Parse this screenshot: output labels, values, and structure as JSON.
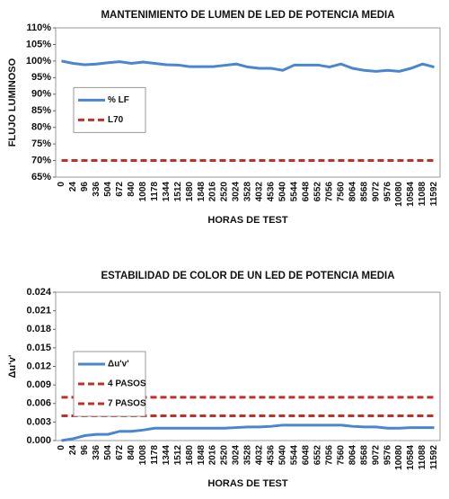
{
  "chart_data": [
    {
      "type": "line",
      "title": "MANTENIMIENTO DE LUMEN DE LED DE POTENCIA MEDIA",
      "y_label": "FLUJO LUMINOSO",
      "x_label": "HORAS DE TEST",
      "categories": [
        "0",
        "24",
        "96",
        "336",
        "504",
        "672",
        "840",
        "1008",
        "1178",
        "1344",
        "1512",
        "1680",
        "1848",
        "2016",
        "2520",
        "3024",
        "3528",
        "4032",
        "4536",
        "5040",
        "5544",
        "6048",
        "6552",
        "7056",
        "7560",
        "8064",
        "8568",
        "9072",
        "9576",
        "10080",
        "10584",
        "11088",
        "11592"
      ],
      "series": [
        {
          "name": "% LF",
          "color": "#4a86d0",
          "dash": false,
          "values": [
            100,
            99.3,
            98.9,
            99.1,
            99.5,
            99.8,
            99.3,
            99.7,
            99.3,
            98.9,
            98.8,
            98.3,
            98.3,
            98.3,
            98.7,
            99.1,
            98.2,
            97.8,
            97.8,
            97.2,
            98.8,
            98.8,
            98.8,
            98.2,
            99.1,
            97.8,
            97.2,
            96.9,
            97.2,
            96.9,
            97.8,
            99.1,
            98.2
          ]
        },
        {
          "name": "L70",
          "color": "#c0302a",
          "dash": true,
          "values": [
            70,
            70,
            70,
            70,
            70,
            70,
            70,
            70,
            70,
            70,
            70,
            70,
            70,
            70,
            70,
            70,
            70,
            70,
            70,
            70,
            70,
            70,
            70,
            70,
            70,
            70,
            70,
            70,
            70,
            70,
            70,
            70,
            70
          ]
        }
      ],
      "ylim": [
        65,
        110
      ],
      "yticks": [
        {
          "value": 65,
          "label": "65%"
        },
        {
          "value": 70,
          "label": "70%"
        },
        {
          "value": 75,
          "label": "75%"
        },
        {
          "value": 80,
          "label": "80%"
        },
        {
          "value": 85,
          "label": "85%"
        },
        {
          "value": 90,
          "label": "90%"
        },
        {
          "value": 95,
          "label": "95%"
        },
        {
          "value": 100,
          "label": "100%"
        },
        {
          "value": 105,
          "label": "105%"
        },
        {
          "value": 110,
          "label": "110%"
        }
      ],
      "legend": "left"
    },
    {
      "type": "line",
      "title": "ESTABILIDAD DE COLOR DE UN LED DE POTENCIA MEDIA",
      "y_label": "Δu'v'",
      "x_label": "HORAS DE TEST",
      "categories": [
        "0",
        "24",
        "96",
        "336",
        "504",
        "672",
        "840",
        "1008",
        "1178",
        "1344",
        "1512",
        "1680",
        "1848",
        "2016",
        "2520",
        "3024",
        "3528",
        "4032",
        "4536",
        "5040",
        "5544",
        "6048",
        "6552",
        "7056",
        "7560",
        "8064",
        "8568",
        "9072",
        "9576",
        "10080",
        "10584",
        "11088",
        "11592"
      ],
      "series": [
        {
          "name": "Δu'v'",
          "color": "#4a86d0",
          "dash": false,
          "values": [
            0,
            0.0003,
            0.0008,
            0.001,
            0.001,
            0.0015,
            0.0015,
            0.0017,
            0.002,
            0.002,
            0.002,
            0.002,
            0.002,
            0.002,
            0.002,
            0.0021,
            0.0022,
            0.0022,
            0.0023,
            0.0025,
            0.0025,
            0.0025,
            0.0025,
            0.0025,
            0.0025,
            0.0023,
            0.0022,
            0.0022,
            0.002,
            0.002,
            0.0021,
            0.0021,
            0.0021
          ]
        },
        {
          "name": "4 PASOS",
          "color": "#c0302a",
          "dash": true,
          "values": [
            0.004,
            0.004,
            0.004,
            0.004,
            0.004,
            0.004,
            0.004,
            0.004,
            0.004,
            0.004,
            0.004,
            0.004,
            0.004,
            0.004,
            0.004,
            0.004,
            0.004,
            0.004,
            0.004,
            0.004,
            0.004,
            0.004,
            0.004,
            0.004,
            0.004,
            0.004,
            0.004,
            0.004,
            0.004,
            0.004,
            0.004,
            0.004,
            0.004
          ]
        },
        {
          "name": "7 PASOS",
          "color": "#c0302a",
          "dash": true,
          "values": [
            0.007,
            0.007,
            0.007,
            0.007,
            0.007,
            0.007,
            0.007,
            0.007,
            0.007,
            0.007,
            0.007,
            0.007,
            0.007,
            0.007,
            0.007,
            0.007,
            0.007,
            0.007,
            0.007,
            0.007,
            0.007,
            0.007,
            0.007,
            0.007,
            0.007,
            0.007,
            0.007,
            0.007,
            0.007,
            0.007,
            0.007,
            0.007,
            0.007
          ]
        }
      ],
      "ylim": [
        0,
        0.024
      ],
      "yticks": [
        {
          "value": 0,
          "label": "0.000"
        },
        {
          "value": 0.003,
          "label": "0.003"
        },
        {
          "value": 0.006,
          "label": "0.006"
        },
        {
          "value": 0.009,
          "label": "0.009"
        },
        {
          "value": 0.012,
          "label": "0.012"
        },
        {
          "value": 0.015,
          "label": "0.015"
        },
        {
          "value": 0.018,
          "label": "0.018"
        },
        {
          "value": 0.021,
          "label": "0.021"
        },
        {
          "value": 0.024,
          "label": "0.024"
        }
      ],
      "legend": "left"
    }
  ]
}
